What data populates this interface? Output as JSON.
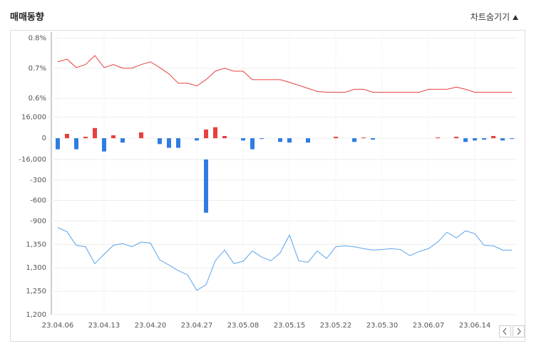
{
  "header": {
    "title": "매매동향",
    "toggle": "차트숨기기"
  },
  "chart_data": [
    {
      "type": "line",
      "color": "#e8403f",
      "ylim": [
        0.56,
        0.82
      ],
      "yticks": [
        {
          "value": 0.8,
          "label": "0.8%"
        },
        {
          "value": 0.7,
          "label": "0.7%"
        },
        {
          "value": 0.6,
          "label": "0.6%"
        }
      ],
      "values": [
        0.721,
        0.73,
        0.702,
        0.712,
        0.742,
        0.702,
        0.712,
        0.7,
        0.7,
        0.712,
        0.721,
        0.702,
        0.681,
        0.65,
        0.65,
        0.641,
        0.662,
        0.69,
        0.7,
        0.69,
        0.69,
        0.662,
        0.662,
        0.662,
        0.662,
        0.653,
        0.643,
        0.633,
        0.623,
        0.62,
        0.62,
        0.62,
        0.63,
        0.63,
        0.62,
        0.62,
        0.62,
        0.62,
        0.62,
        0.62,
        0.63,
        0.63,
        0.63,
        0.637,
        0.63,
        0.62,
        0.62,
        0.62,
        0.62,
        0.62
      ]
    },
    {
      "type": "bar",
      "positive_color": "#e8403f",
      "negative_color": "#2f7de1",
      "ylim": [
        -16000,
        21000
      ],
      "yticks": [
        {
          "value": 16000,
          "label": "16,000"
        },
        0,
        {
          "value": -16000,
          "label": "-16,000"
        }
      ],
      "values": [
        -8300,
        3300,
        -8300,
        1100,
        7700,
        -10000,
        2200,
        -3300,
        0,
        4400,
        0,
        -4400,
        -7200,
        -7200,
        0,
        -1700,
        6600,
        8300,
        1700,
        0,
        -1700,
        -8300,
        -550,
        0,
        -2800,
        -3300,
        0,
        -3300,
        0,
        0,
        1100,
        0,
        -2800,
        550,
        -1100,
        0,
        0,
        0,
        0,
        0,
        0,
        550,
        0,
        1100,
        -2800,
        -1700,
        -1100,
        1700,
        -1700,
        -550
      ]
    },
    {
      "type": "bar",
      "positive_color": "#e8403f",
      "negative_color": "#2f7de1",
      "ylim": [
        -970,
        0
      ],
      "yticks": [
        -300,
        -600,
        -900
      ],
      "values": [
        null,
        null,
        null,
        null,
        null,
        null,
        null,
        null,
        null,
        null,
        null,
        null,
        null,
        null,
        null,
        null,
        -780,
        null,
        null,
        null,
        null,
        null,
        null,
        null,
        null,
        null,
        null,
        null,
        null,
        null,
        null,
        null,
        null,
        null,
        null,
        null,
        null,
        null,
        null,
        null,
        null,
        null,
        null,
        null,
        null,
        null,
        null,
        null,
        null,
        null
      ]
    },
    {
      "type": "line",
      "color": "#5aa3e8",
      "ylim": [
        1200,
        1390
      ],
      "yticks": [
        {
          "value": 1350,
          "label": "1,350"
        },
        {
          "value": 1300,
          "label": "1,300"
        },
        {
          "value": 1250,
          "label": "1,250"
        },
        {
          "value": 1200,
          "label": "1,200"
        }
      ],
      "categories": [
        "23.04.06",
        null,
        null,
        null,
        null,
        "23.04.13",
        null,
        null,
        null,
        null,
        "23.04.20",
        null,
        null,
        null,
        null,
        "23.04.27",
        null,
        null,
        null,
        null,
        "23.05.08",
        null,
        null,
        null,
        null,
        "23.05.15",
        null,
        null,
        null,
        null,
        "23.05.22",
        null,
        null,
        null,
        null,
        "23.05.30",
        null,
        null,
        null,
        null,
        "23.06.07",
        null,
        null,
        null,
        null,
        "23.06.14",
        null,
        null,
        null,
        null
      ],
      "values": [
        1386,
        1377,
        1348,
        1345,
        1309,
        1329,
        1348,
        1352,
        1345,
        1355,
        1353,
        1317,
        1306,
        1294,
        1285,
        1252,
        1264,
        1315,
        1338,
        1309,
        1314,
        1336,
        1323,
        1315,
        1332,
        1370,
        1315,
        1312,
        1336,
        1320,
        1345,
        1347,
        1345,
        1341,
        1338,
        1339,
        1341,
        1339,
        1326,
        1335,
        1341,
        1355,
        1376,
        1364,
        1379,
        1373,
        1348,
        1347,
        1338,
        1338
      ]
    }
  ]
}
